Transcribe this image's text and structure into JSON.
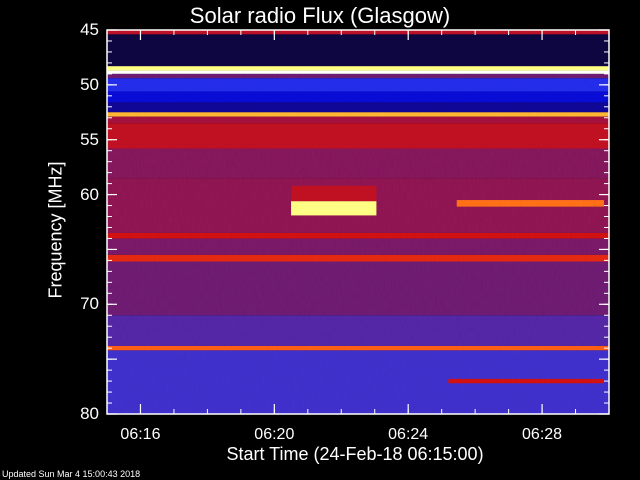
{
  "chart_data": {
    "type": "heatmap",
    "title": "Solar radio Flux (Glasgow)",
    "xlabel": "Start Time (24-Feb-18 06:15:00)",
    "ylabel": "Frequency [MHz]",
    "x_ticks": [
      "06:16",
      "06:20",
      "06:24",
      "06:28"
    ],
    "x_tick_minutes": [
      1,
      5,
      9,
      13
    ],
    "xlim_minutes": [
      0,
      15
    ],
    "y_ticks": [
      45,
      50,
      55,
      60,
      65,
      70,
      75,
      80
    ],
    "y_tick_labels": [
      "45",
      "50",
      "55",
      "60",
      "",
      "70",
      "",
      "80"
    ],
    "ylim": [
      45,
      80
    ],
    "y_inverted": true,
    "colormap": [
      "#000010",
      "#1a0a6a",
      "#0000cc",
      "#2a36f0",
      "#6a1a6e",
      "#a0103a",
      "#d01010",
      "#ff4a10",
      "#ffa020",
      "#ffff80",
      "#ffffff"
    ],
    "frequency_bands": [
      {
        "from": 45.0,
        "to": 45.4,
        "level": 0.55
      },
      {
        "from": 45.4,
        "to": 48.3,
        "level": 0.05
      },
      {
        "from": 48.3,
        "to": 48.7,
        "level": 0.9
      },
      {
        "from": 48.7,
        "to": 49.0,
        "level": 1.0
      },
      {
        "from": 49.0,
        "to": 49.4,
        "level": 0.4
      },
      {
        "from": 49.4,
        "to": 50.6,
        "level": 0.28
      },
      {
        "from": 50.6,
        "to": 51.6,
        "level": 0.22
      },
      {
        "from": 51.6,
        "to": 52.5,
        "level": 0.14
      },
      {
        "from": 52.5,
        "to": 52.9,
        "level": 0.82
      },
      {
        "from": 52.9,
        "to": 53.5,
        "level": 0.5
      },
      {
        "from": 53.5,
        "to": 55.8,
        "level": 0.56
      },
      {
        "from": 55.8,
        "to": 58.5,
        "level": 0.44
      },
      {
        "from": 58.5,
        "to": 63.5,
        "level": 0.46
      },
      {
        "from": 63.5,
        "to": 64.0,
        "level": 0.6
      },
      {
        "from": 64.0,
        "to": 65.5,
        "level": 0.42
      },
      {
        "from": 65.5,
        "to": 66.1,
        "level": 0.64
      },
      {
        "from": 66.1,
        "to": 71.0,
        "level": 0.4
      },
      {
        "from": 71.0,
        "to": 73.8,
        "level": 0.36
      },
      {
        "from": 73.8,
        "to": 74.2,
        "level": 0.72
      },
      {
        "from": 74.2,
        "to": 80.0,
        "level": 0.33
      }
    ],
    "bursts": [
      {
        "t_start": 5.5,
        "t_end": 8.05,
        "f_start": 60.6,
        "f_end": 61.9,
        "level": 0.9
      },
      {
        "t_start": 5.5,
        "t_end": 8.05,
        "f_start": 59.2,
        "f_end": 60.6,
        "level": 0.56
      },
      {
        "t_start": 10.45,
        "t_end": 14.85,
        "f_start": 60.5,
        "f_end": 61.1,
        "level": 0.74
      },
      {
        "t_start": 10.2,
        "t_end": 14.85,
        "f_start": 76.8,
        "f_end": 77.2,
        "level": 0.6
      }
    ]
  },
  "footer": "Updated Sun Mar  4 15:00:43 2018"
}
